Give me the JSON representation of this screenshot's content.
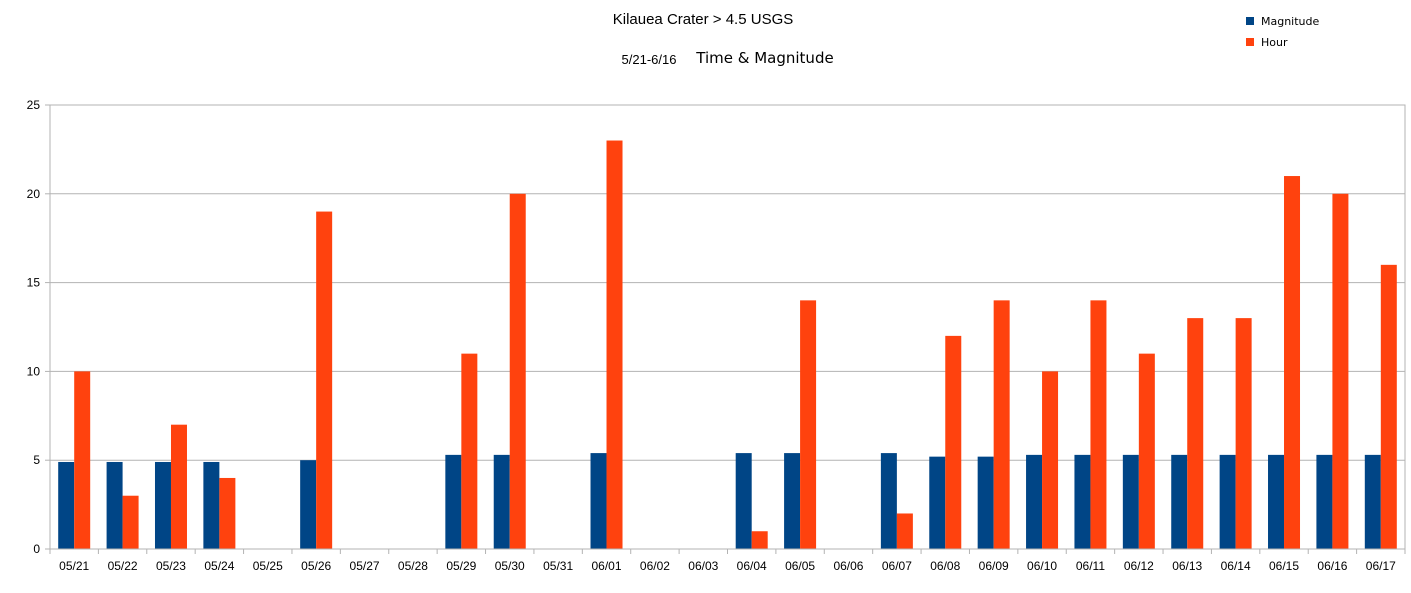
{
  "chart_data": {
    "type": "bar",
    "title": "Kilauea Crater > 4.5 USGS",
    "subtitle_range": "5/21-6/16",
    "subtitle": "Time & Magnitude",
    "xlabel": "",
    "ylabel": "",
    "ylim": [
      0,
      25
    ],
    "yticks": [
      0,
      5,
      10,
      15,
      20,
      25
    ],
    "grid": true,
    "legend_position": "top-right",
    "categories": [
      "05/21",
      "05/22",
      "05/23",
      "05/24",
      "05/25",
      "05/26",
      "05/27",
      "05/28",
      "05/29",
      "05/30",
      "05/31",
      "06/01",
      "06/02",
      "06/03",
      "06/04",
      "06/05",
      "06/06",
      "06/07",
      "06/08",
      "06/09",
      "06/10",
      "06/11",
      "06/12",
      "06/13",
      "06/14",
      "06/15",
      "06/16",
      "06/17"
    ],
    "series": [
      {
        "name": "Magnitude",
        "color": "#004586",
        "values": [
          4.9,
          4.9,
          4.9,
          4.9,
          null,
          5.0,
          null,
          null,
          5.3,
          5.3,
          null,
          5.4,
          null,
          null,
          5.4,
          5.4,
          null,
          5.4,
          5.2,
          5.2,
          5.3,
          5.3,
          5.3,
          5.3,
          5.3,
          5.3,
          5.3,
          5.3
        ]
      },
      {
        "name": "Hour",
        "color": "#ff420e",
        "values": [
          10,
          3,
          7,
          4,
          null,
          19,
          null,
          null,
          11,
          20,
          null,
          23,
          null,
          null,
          1,
          14,
          null,
          2,
          12,
          14,
          10,
          14,
          11,
          13,
          13,
          21,
          20,
          16
        ]
      }
    ]
  }
}
